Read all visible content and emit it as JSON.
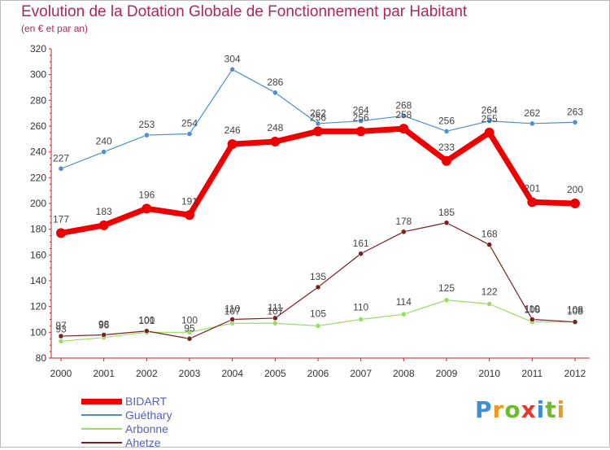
{
  "header": {
    "title": "Evolution de la Dotation Globale de Fonctionnement par Habitant",
    "subtitle": "(en € et par an)"
  },
  "logo": {
    "letters": [
      "P",
      "r",
      "o",
      "x",
      "i",
      "t",
      "i"
    ],
    "colors": [
      "#3b8fd6",
      "#f29a1f",
      "#6cbc2f",
      "#e03a2f",
      "#3b8fd6",
      "#6cbc2f",
      "#f29a1f"
    ]
  },
  "chart_data": {
    "type": "line",
    "title": "Evolution de la Dotation Globale de Fonctionnement par Habitant",
    "subtitle": "(en € et par an)",
    "xlabel": "",
    "ylabel": "",
    "x": [
      "2000",
      "2001",
      "2002",
      "2003",
      "2004",
      "2005",
      "2006",
      "2007",
      "2008",
      "2009",
      "2010",
      "2011",
      "2012"
    ],
    "ylim": [
      80,
      320
    ],
    "yticks": [
      80,
      100,
      120,
      140,
      160,
      180,
      200,
      220,
      240,
      260,
      280,
      300,
      320
    ],
    "grid": false,
    "legend_position": "bottom-left",
    "series": [
      {
        "name": "BIDART",
        "color": "#ee0000",
        "values": [
          177,
          183,
          196,
          191,
          246,
          248,
          256,
          256,
          258,
          233,
          255,
          201,
          200
        ]
      },
      {
        "name": "Guéthary",
        "color": "#4a8fd0",
        "values": [
          227,
          240,
          253,
          254,
          304,
          286,
          262,
          264,
          268,
          256,
          264,
          262,
          263
        ]
      },
      {
        "name": "Arbonne",
        "color": "#99dd66",
        "values": [
          93,
          96,
          100,
          100,
          107,
          107,
          105,
          110,
          114,
          125,
          122,
          108,
          108
        ]
      },
      {
        "name": "Ahetze",
        "color": "#7a2020",
        "values": [
          97,
          98,
          101,
          95,
          110,
          111,
          135,
          161,
          178,
          185,
          168,
          110,
          108
        ]
      }
    ]
  }
}
